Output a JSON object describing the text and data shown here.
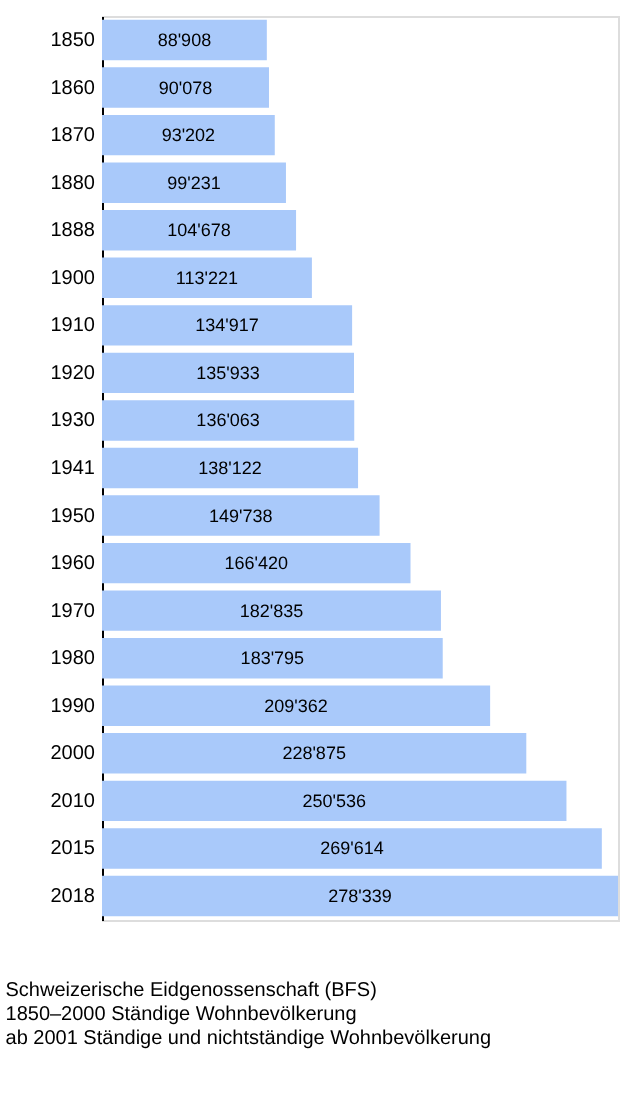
{
  "chart_data": {
    "type": "bar",
    "orientation": "horizontal",
    "categories": [
      "1850",
      "1860",
      "1870",
      "1880",
      "1888",
      "1900",
      "1910",
      "1920",
      "1930",
      "1941",
      "1950",
      "1960",
      "1970",
      "1980",
      "1990",
      "2000",
      "2010",
      "2015",
      "2018"
    ],
    "values": [
      88908,
      90078,
      93202,
      99231,
      104678,
      113221,
      134917,
      135933,
      136063,
      138122,
      149738,
      166420,
      182835,
      183795,
      209362,
      228875,
      250536,
      269614,
      278339
    ],
    "value_labels": [
      "88'908",
      "90'078",
      "93'202",
      "99'231",
      "104'678",
      "113'221",
      "134'917",
      "135'933",
      "136'063",
      "138'122",
      "149'738",
      "166'420",
      "182'835",
      "183'795",
      "209'362",
      "228'875",
      "250'536",
      "269'614",
      "278'339"
    ],
    "color": "#a9c9fa",
    "grid": false,
    "annotations": [
      "Schweizerische Eidgenossenschaft (BFS)",
      "1850–2000 Ständige Wohnbevölkerung",
      "ab 2001 Ständige und nichtständige Wohnbevölkerung"
    ]
  }
}
